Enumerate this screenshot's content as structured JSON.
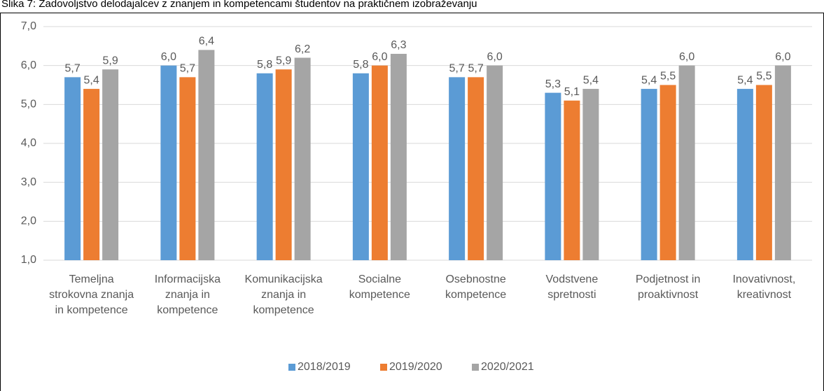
{
  "chart_data": {
    "type": "bar",
    "title": "Slika 7: Zadovoljstvo delodajalcev z znanjem in kompetencami študentov na praktičnem izobraževanju",
    "categories": [
      "Temeljna strokovna znanja in kompetence",
      "Informacijska znanja in kompetence",
      "Komunikacijska znanja in kompetence",
      "Socialne kompetence",
      "Osebnostne kompetence",
      "Vodstvene spretnosti",
      "Podjetnost in proaktivnost",
      "Inovativnost, kreativnost"
    ],
    "series": [
      {
        "name": "2018/2019",
        "color": "#5b9bd5",
        "values": [
          5.7,
          6.0,
          5.8,
          5.8,
          5.7,
          5.3,
          5.4,
          5.4
        ],
        "value_labels": [
          "5,7",
          "6,0",
          "5,8",
          "5,8",
          "5,7",
          "5,3",
          "5,4",
          "5,4"
        ]
      },
      {
        "name": "2019/2020",
        "color": "#ed7d31",
        "values": [
          5.4,
          5.7,
          5.9,
          6.0,
          5.7,
          5.1,
          5.5,
          5.5
        ],
        "value_labels": [
          "5,4",
          "5,7",
          "5,9",
          "6,0",
          "5,7",
          "5,1",
          "5,5",
          "5,5"
        ]
      },
      {
        "name": "2020/2021",
        "color": "#a5a5a5",
        "values": [
          5.9,
          6.4,
          6.2,
          6.3,
          6.0,
          5.4,
          6.0,
          6.0
        ],
        "value_labels": [
          "5,9",
          "6,4",
          "6,2",
          "6,3",
          "6,0",
          "5,4",
          "6,0",
          "6,0"
        ]
      }
    ],
    "ylim": [
      1,
      7
    ],
    "yticks": [
      {
        "value": 1,
        "label": "1,0"
      },
      {
        "value": 2,
        "label": "2,0"
      },
      {
        "value": 3,
        "label": "3,0"
      },
      {
        "value": 4,
        "label": "4,0"
      },
      {
        "value": 5,
        "label": "5,0"
      },
      {
        "value": 6,
        "label": "6,0"
      },
      {
        "value": 7,
        "label": "7,0"
      }
    ],
    "grid": true,
    "legend": "bottom"
  }
}
